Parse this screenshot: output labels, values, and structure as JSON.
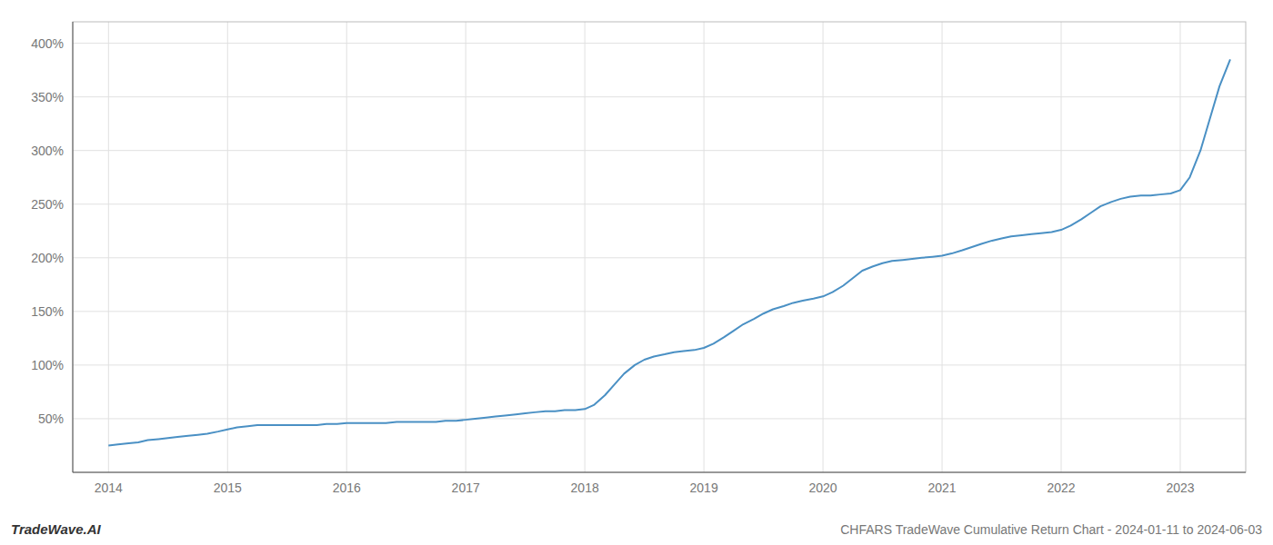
{
  "chart_data": {
    "type": "line",
    "title": "CHFARS TradeWave Cumulative Return Chart - 2024-01-11 to 2024-06-03",
    "annotations": [
      "TradeWave.AI"
    ],
    "color": "#4a90c4",
    "grid": true,
    "x": [
      2014.0,
      2014.08,
      2014.17,
      2014.25,
      2014.33,
      2014.42,
      2014.5,
      2014.58,
      2014.67,
      2014.75,
      2014.83,
      2014.92,
      2015.0,
      2015.08,
      2015.17,
      2015.25,
      2015.33,
      2015.42,
      2015.5,
      2015.58,
      2015.67,
      2015.75,
      2015.83,
      2015.92,
      2016.0,
      2016.08,
      2016.17,
      2016.25,
      2016.33,
      2016.42,
      2016.5,
      2016.58,
      2016.67,
      2016.75,
      2016.83,
      2016.92,
      2017.0,
      2017.08,
      2017.17,
      2017.25,
      2017.33,
      2017.42,
      2017.5,
      2017.58,
      2017.67,
      2017.75,
      2017.83,
      2017.92,
      2018.0,
      2018.08,
      2018.17,
      2018.25,
      2018.33,
      2018.42,
      2018.5,
      2018.58,
      2018.67,
      2018.75,
      2018.83,
      2018.92,
      2019.0,
      2019.08,
      2019.17,
      2019.25,
      2019.33,
      2019.42,
      2019.5,
      2019.58,
      2019.67,
      2019.75,
      2019.83,
      2019.92,
      2020.0,
      2020.08,
      2020.17,
      2020.25,
      2020.33,
      2020.42,
      2020.5,
      2020.58,
      2020.67,
      2020.75,
      2020.83,
      2020.92,
      2021.0,
      2021.08,
      2021.17,
      2021.25,
      2021.33,
      2021.42,
      2021.5,
      2021.58,
      2021.67,
      2021.75,
      2021.83,
      2021.92,
      2022.0,
      2022.08,
      2022.17,
      2022.25,
      2022.33,
      2022.42,
      2022.5,
      2022.58,
      2022.67,
      2022.75,
      2022.83,
      2022.92,
      2023.0,
      2023.08,
      2023.17,
      2023.25,
      2023.33,
      2023.42
    ],
    "values": [
      25,
      26,
      27,
      28,
      30,
      31,
      32,
      33,
      34,
      35,
      36,
      38,
      40,
      42,
      43,
      44,
      44,
      44,
      44,
      44,
      44,
      44,
      45,
      45,
      46,
      46,
      46,
      46,
      46,
      47,
      47,
      47,
      47,
      47,
      48,
      48,
      49,
      50,
      51,
      52,
      53,
      54,
      55,
      56,
      57,
      57,
      58,
      58,
      59,
      63,
      72,
      82,
      92,
      100,
      105,
      108,
      110,
      112,
      113,
      114,
      116,
      120,
      126,
      132,
      138,
      143,
      148,
      152,
      155,
      158,
      160,
      162,
      164,
      168,
      174,
      181,
      188,
      192,
      195,
      197,
      198,
      199,
      200,
      201,
      202,
      204,
      207,
      210,
      213,
      216,
      218,
      220,
      221,
      222,
      223,
      224,
      226,
      230,
      236,
      242,
      248,
      252,
      255,
      257,
      258,
      258,
      259,
      260,
      263,
      275,
      300,
      330,
      360,
      385
    ],
    "xlim": [
      2013.7,
      2023.55
    ],
    "xticks": [
      2014,
      2015,
      2016,
      2017,
      2018,
      2019,
      2020,
      2021,
      2022,
      2023
    ],
    "ylim": [
      0,
      420
    ],
    "yticks": [
      {
        "value": 50,
        "label": "50%"
      },
      {
        "value": 100,
        "label": "100%"
      },
      {
        "value": 150,
        "label": "150%"
      },
      {
        "value": 200,
        "label": "200%"
      },
      {
        "value": 250,
        "label": "250%"
      },
      {
        "value": 300,
        "label": "300%"
      },
      {
        "value": 350,
        "label": "350%"
      },
      {
        "value": 400,
        "label": "400%"
      }
    ]
  }
}
